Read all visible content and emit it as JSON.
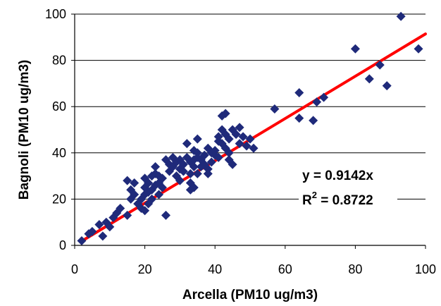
{
  "colors": {
    "points": "#1F2A7A",
    "trendline": "#FF0000",
    "grid": "#000000",
    "axis": "#000000",
    "background": "#FFFFFF"
  },
  "chart_data": {
    "type": "scatter",
    "xlabel": "Arcella (PM10 ug/m3)",
    "ylabel": "Bagnoli (PM10 ug/m3)",
    "xlim": [
      0,
      100
    ],
    "ylim": [
      0,
      100
    ],
    "x_ticks": [
      "0",
      "20",
      "40",
      "60",
      "80",
      "100"
    ],
    "y_ticks": [
      "0",
      "20",
      "40",
      "60",
      "80",
      "100"
    ],
    "grid": "horizontal",
    "marker": "diamond",
    "trendline": {
      "type": "linear-through-origin",
      "slope": 0.9142
    },
    "annotations": {
      "equation": "y = 0.9142x",
      "r2_prefix": "R",
      "r2_superscript": "2",
      "r2_suffix": " = 0.8722"
    },
    "points": [
      [
        2,
        2
      ],
      [
        4,
        5
      ],
      [
        5,
        6
      ],
      [
        7,
        9
      ],
      [
        8,
        4
      ],
      [
        9,
        10
      ],
      [
        10,
        8
      ],
      [
        11,
        12
      ],
      [
        12,
        14
      ],
      [
        13,
        16
      ],
      [
        15,
        13
      ],
      [
        15,
        28
      ],
      [
        16,
        24
      ],
      [
        16,
        20
      ],
      [
        17,
        27
      ],
      [
        17,
        22
      ],
      [
        18,
        18
      ],
      [
        19,
        16
      ],
      [
        19,
        20
      ],
      [
        20,
        15
      ],
      [
        20,
        22
      ],
      [
        20,
        25
      ],
      [
        20,
        29
      ],
      [
        21,
        18
      ],
      [
        21,
        23
      ],
      [
        21,
        27
      ],
      [
        22,
        30
      ],
      [
        22,
        20
      ],
      [
        22,
        24
      ],
      [
        23,
        26
      ],
      [
        23,
        31
      ],
      [
        23,
        34
      ],
      [
        24,
        22
      ],
      [
        24,
        27
      ],
      [
        24,
        30
      ],
      [
        25,
        29
      ],
      [
        25,
        25
      ],
      [
        26,
        13
      ],
      [
        26,
        37
      ],
      [
        27,
        32
      ],
      [
        27,
        35
      ],
      [
        28,
        34
      ],
      [
        28,
        38
      ],
      [
        29,
        36
      ],
      [
        29,
        30
      ],
      [
        30,
        37
      ],
      [
        30,
        28
      ],
      [
        30,
        33
      ],
      [
        31,
        32
      ],
      [
        31,
        35
      ],
      [
        32,
        44
      ],
      [
        32,
        38
      ],
      [
        33,
        24
      ],
      [
        33,
        27
      ],
      [
        33,
        36
      ],
      [
        33,
        31
      ],
      [
        34,
        37
      ],
      [
        34,
        41
      ],
      [
        34,
        34
      ],
      [
        34,
        25
      ],
      [
        35,
        40
      ],
      [
        35,
        46
      ],
      [
        35,
        31
      ],
      [
        35,
        38
      ],
      [
        36,
        34
      ],
      [
        36,
        37
      ],
      [
        37,
        39
      ],
      [
        37,
        35
      ],
      [
        38,
        33
      ],
      [
        38,
        31
      ],
      [
        38,
        42
      ],
      [
        39,
        40
      ],
      [
        39,
        36
      ],
      [
        40,
        39
      ],
      [
        40,
        41
      ],
      [
        41,
        45
      ],
      [
        41,
        47
      ],
      [
        41,
        38
      ],
      [
        42,
        50
      ],
      [
        42,
        44
      ],
      [
        42,
        56
      ],
      [
        43,
        57
      ],
      [
        43,
        48
      ],
      [
        43,
        42
      ],
      [
        44,
        46
      ],
      [
        44,
        37
      ],
      [
        44,
        40
      ],
      [
        45,
        35
      ],
      [
        45,
        50
      ],
      [
        46,
        48
      ],
      [
        47,
        44
      ],
      [
        47,
        51
      ],
      [
        48,
        47
      ],
      [
        49,
        43
      ],
      [
        50,
        46
      ],
      [
        51,
        42
      ],
      [
        57,
        59
      ],
      [
        64,
        66
      ],
      [
        64,
        55
      ],
      [
        68,
        54
      ],
      [
        69,
        62
      ],
      [
        71,
        64
      ],
      [
        80,
        85
      ],
      [
        84,
        72
      ],
      [
        87,
        78
      ],
      [
        89,
        69
      ],
      [
        93,
        99
      ],
      [
        98,
        85
      ]
    ]
  }
}
